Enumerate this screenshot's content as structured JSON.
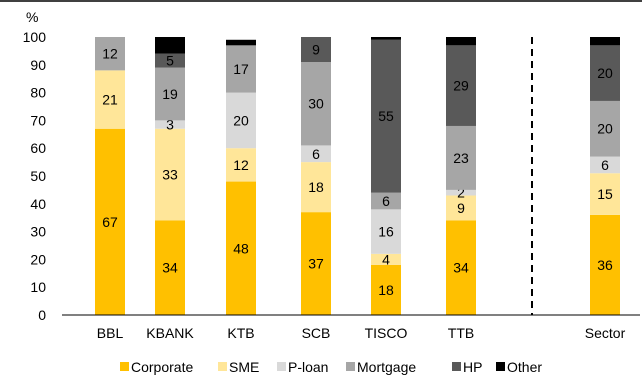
{
  "chart_data": {
    "type": "bar",
    "stacked": true,
    "ylabel": "%",
    "ylim": [
      0,
      100
    ],
    "yticks": [
      0,
      10,
      20,
      30,
      40,
      50,
      60,
      70,
      80,
      90,
      100
    ],
    "categories": [
      "BBL",
      "KBANK",
      "KTB",
      "SCB",
      "TISCO",
      "TTB",
      "Sector"
    ],
    "separator_before": "Sector",
    "grid": false,
    "legend_position": "bottom",
    "series": [
      {
        "name": "Corporate",
        "color": "#ffc000",
        "values": [
          67,
          34,
          48,
          37,
          18,
          34,
          36
        ],
        "labels": [
          "67",
          "34",
          "48",
          "37",
          "18",
          "34",
          "36"
        ]
      },
      {
        "name": "SME",
        "color": "#ffe699",
        "values": [
          21,
          33,
          12,
          18,
          4,
          9,
          15
        ],
        "labels": [
          "21",
          "33",
          "12",
          "18",
          "4",
          "9",
          "15"
        ]
      },
      {
        "name": "P-loan",
        "color": "#d9d9d9",
        "values": [
          0,
          3,
          20,
          6,
          16,
          2,
          6
        ],
        "labels": [
          "",
          "3",
          "20",
          "6",
          "16",
          "2",
          "6"
        ]
      },
      {
        "name": "Mortgage",
        "color": "#a6a6a6",
        "values": [
          12,
          19,
          17,
          30,
          6,
          23,
          20
        ],
        "labels": [
          "12",
          "19",
          "17",
          "30",
          "6",
          "23",
          "20"
        ]
      },
      {
        "name": "HP",
        "color": "#595959",
        "values": [
          0,
          5,
          0,
          9,
          55,
          29,
          20
        ],
        "labels": [
          "",
          "5",
          "",
          "9",
          "55",
          "29",
          "20"
        ]
      },
      {
        "name": "Other",
        "color": "#000000",
        "values": [
          0,
          6,
          2,
          0,
          1,
          3,
          3
        ],
        "labels": [
          "",
          "",
          "",
          "",
          "",
          "",
          ""
        ]
      }
    ]
  }
}
